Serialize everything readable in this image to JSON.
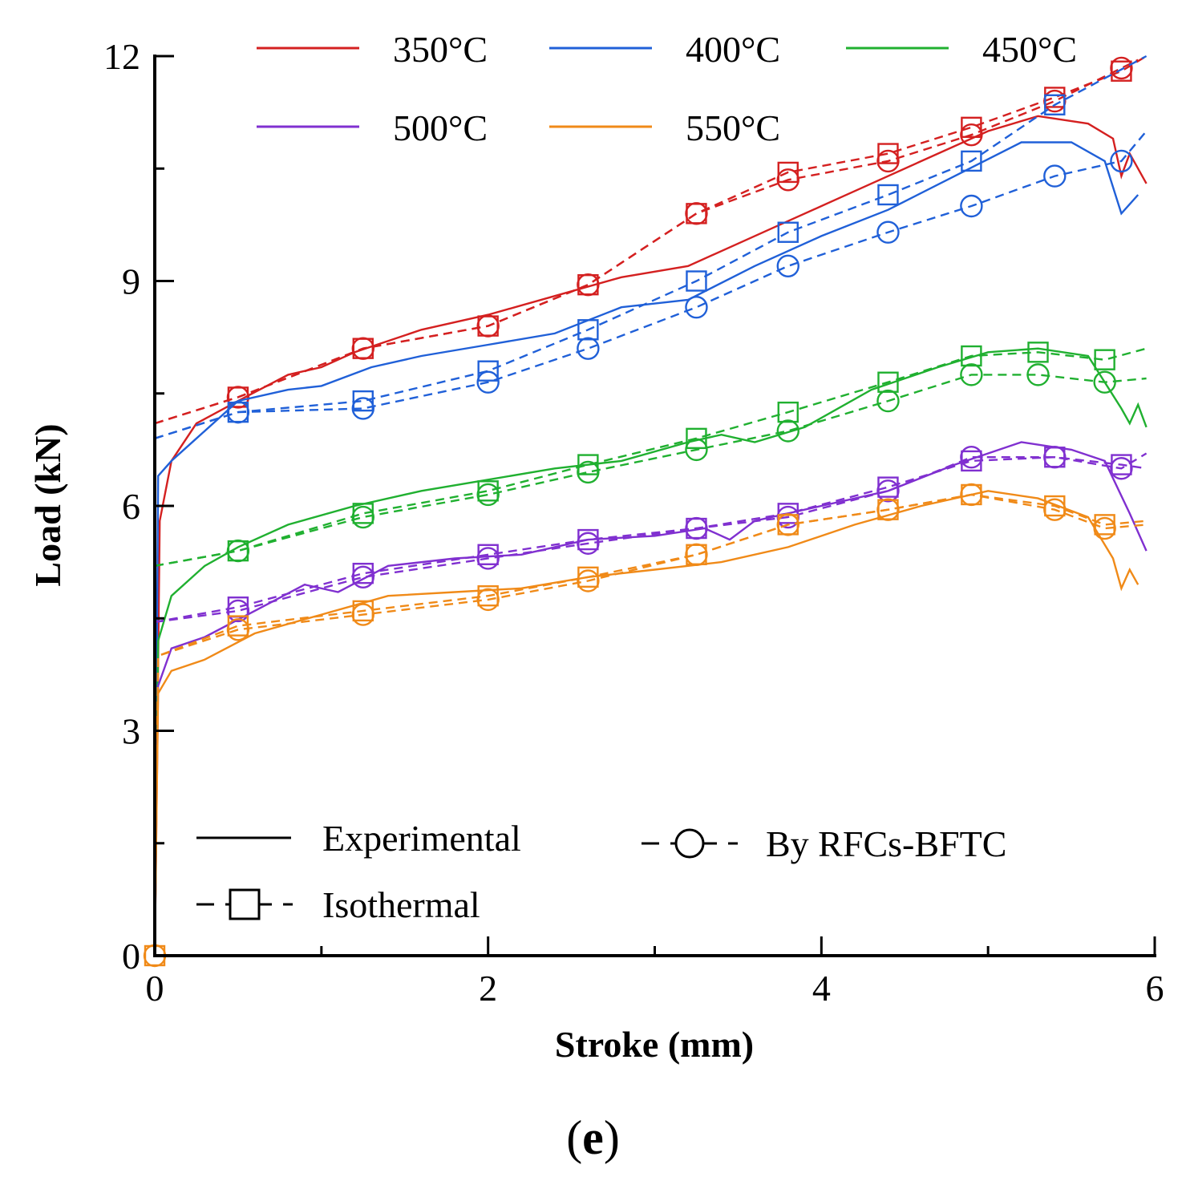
{
  "chart_data": {
    "type": "line",
    "xlabel": "Stroke (mm)",
    "ylabel": "Load (kN)",
    "xlim": [
      0,
      6
    ],
    "ylim": [
      0,
      12
    ],
    "x_ticks": [
      "0",
      "2",
      "4",
      "6"
    ],
    "y_ticks": [
      "0",
      "3",
      "6",
      "9",
      "12"
    ],
    "panel_label_open": "(",
    "panel_label": "e",
    "panel_label_close": ")",
    "temperature_legend": [
      {
        "name": "350°C",
        "color": "#d42020"
      },
      {
        "name": "400°C",
        "color": "#2060d8"
      },
      {
        "name": "450°C",
        "color": "#20b030"
      },
      {
        "name": "500°C",
        "color": "#8030d0"
      },
      {
        "name": "550°C",
        "color": "#f08a18"
      }
    ],
    "style_legend": [
      {
        "label": "Experimental",
        "style": "solid"
      },
      {
        "label": "By RFCs-BFTC",
        "style": "dashed-circle"
      },
      {
        "label": "Isothermal",
        "style": "dashed-square"
      }
    ],
    "series": [
      {
        "name": "350°C",
        "color": "#d42020",
        "experimental": [
          [
            0,
            0
          ],
          [
            0.03,
            5.8
          ],
          [
            0.1,
            6.6
          ],
          [
            0.25,
            7.1
          ],
          [
            0.5,
            7.4
          ],
          [
            0.8,
            7.75
          ],
          [
            1.0,
            7.85
          ],
          [
            1.2,
            8.05
          ],
          [
            1.6,
            8.35
          ],
          [
            2.0,
            8.55
          ],
          [
            2.4,
            8.8
          ],
          [
            2.8,
            9.05
          ],
          [
            3.2,
            9.2
          ],
          [
            3.5,
            9.5
          ],
          [
            3.8,
            9.8
          ],
          [
            4.2,
            10.2
          ],
          [
            4.6,
            10.6
          ],
          [
            5.0,
            11.0
          ],
          [
            5.3,
            11.2
          ],
          [
            5.6,
            11.1
          ],
          [
            5.75,
            10.9
          ],
          [
            5.8,
            10.4
          ],
          [
            5.85,
            10.7
          ],
          [
            5.95,
            10.3
          ]
        ],
        "rfcs": [
          [
            0,
            7.1
          ],
          [
            0.5,
            7.45
          ],
          [
            1.25,
            8.1
          ],
          [
            2.0,
            8.4
          ],
          [
            2.6,
            8.95
          ],
          [
            3.25,
            9.9
          ],
          [
            3.8,
            10.35
          ],
          [
            4.4,
            10.6
          ],
          [
            4.9,
            10.95
          ],
          [
            5.4,
            11.4
          ],
          [
            5.9,
            11.95
          ]
        ],
        "rfcs_markers": [
          0.5,
          1.25,
          2.0,
          2.6,
          3.25,
          3.8,
          4.4,
          4.9,
          5.4,
          5.8
        ],
        "isothermal": [
          [
            0,
            7.1
          ],
          [
            0.5,
            7.45
          ],
          [
            1.25,
            8.1
          ],
          [
            2.0,
            8.4
          ],
          [
            2.6,
            8.95
          ],
          [
            3.25,
            9.9
          ],
          [
            3.8,
            10.45
          ],
          [
            4.4,
            10.7
          ],
          [
            4.9,
            11.05
          ],
          [
            5.4,
            11.45
          ],
          [
            5.8,
            11.8
          ],
          [
            5.95,
            12.0
          ]
        ],
        "iso_markers": [
          0.5,
          1.25,
          2.0,
          2.6,
          3.25,
          3.8,
          4.4,
          4.9,
          5.4,
          5.8
        ]
      },
      {
        "name": "400°C",
        "color": "#2060d8",
        "experimental": [
          [
            0,
            0
          ],
          [
            0.02,
            6.4
          ],
          [
            0.1,
            6.6
          ],
          [
            0.25,
            6.9
          ],
          [
            0.5,
            7.4
          ],
          [
            0.8,
            7.55
          ],
          [
            1.0,
            7.6
          ],
          [
            1.3,
            7.85
          ],
          [
            1.6,
            8.0
          ],
          [
            2.0,
            8.15
          ],
          [
            2.4,
            8.3
          ],
          [
            2.8,
            8.65
          ],
          [
            3.2,
            8.75
          ],
          [
            3.6,
            9.2
          ],
          [
            4.0,
            9.6
          ],
          [
            4.4,
            9.95
          ],
          [
            4.8,
            10.4
          ],
          [
            5.2,
            10.85
          ],
          [
            5.5,
            10.85
          ],
          [
            5.7,
            10.6
          ],
          [
            5.8,
            9.9
          ],
          [
            5.9,
            10.15
          ]
        ],
        "rfcs": [
          [
            0,
            6.9
          ],
          [
            0.5,
            7.25
          ],
          [
            1.25,
            7.3
          ],
          [
            2.0,
            7.65
          ],
          [
            2.6,
            8.1
          ],
          [
            3.25,
            8.65
          ],
          [
            3.8,
            9.2
          ],
          [
            4.4,
            9.65
          ],
          [
            4.9,
            10.0
          ],
          [
            5.4,
            10.4
          ],
          [
            5.8,
            10.6
          ],
          [
            5.95,
            11.0
          ]
        ],
        "rfcs_markers": [
          0.5,
          1.25,
          2.0,
          2.6,
          3.25,
          3.8,
          4.4,
          4.9,
          5.4,
          5.8
        ],
        "isothermal": [
          [
            0,
            6.9
          ],
          [
            0.5,
            7.25
          ],
          [
            1.25,
            7.4
          ],
          [
            2.0,
            7.8
          ],
          [
            2.6,
            8.35
          ],
          [
            3.25,
            9.0
          ],
          [
            3.8,
            9.65
          ],
          [
            4.4,
            10.15
          ],
          [
            4.9,
            10.6
          ],
          [
            5.4,
            11.35
          ],
          [
            5.95,
            12.0
          ]
        ],
        "iso_markers": [
          0.5,
          1.25,
          2.0,
          2.6,
          3.25,
          3.8,
          4.4,
          4.9,
          5.4
        ]
      },
      {
        "name": "450°C",
        "color": "#20b030",
        "experimental": [
          [
            0,
            0
          ],
          [
            0.02,
            4.2
          ],
          [
            0.1,
            4.8
          ],
          [
            0.3,
            5.2
          ],
          [
            0.5,
            5.45
          ],
          [
            0.8,
            5.75
          ],
          [
            1.2,
            6.0
          ],
          [
            1.6,
            6.2
          ],
          [
            2.0,
            6.35
          ],
          [
            2.4,
            6.5
          ],
          [
            2.8,
            6.6
          ],
          [
            3.2,
            6.85
          ],
          [
            3.4,
            6.95
          ],
          [
            3.6,
            6.85
          ],
          [
            3.9,
            7.05
          ],
          [
            4.3,
            7.55
          ],
          [
            4.7,
            7.85
          ],
          [
            5.0,
            8.05
          ],
          [
            5.3,
            8.1
          ],
          [
            5.6,
            8.0
          ],
          [
            5.8,
            7.3
          ],
          [
            5.85,
            7.1
          ],
          [
            5.9,
            7.35
          ],
          [
            5.95,
            7.05
          ]
        ],
        "rfcs": [
          [
            0,
            5.2
          ],
          [
            0.5,
            5.4
          ],
          [
            1.25,
            5.85
          ],
          [
            2.0,
            6.15
          ],
          [
            2.6,
            6.45
          ],
          [
            3.25,
            6.75
          ],
          [
            3.8,
            7.0
          ],
          [
            4.4,
            7.4
          ],
          [
            4.9,
            7.75
          ],
          [
            5.3,
            7.75
          ],
          [
            5.7,
            7.65
          ],
          [
            5.95,
            7.7
          ]
        ],
        "rfcs_markers": [
          0.5,
          1.25,
          2.0,
          2.6,
          3.25,
          3.8,
          4.4,
          4.9,
          5.3,
          5.7
        ],
        "isothermal": [
          [
            0,
            5.2
          ],
          [
            0.5,
            5.4
          ],
          [
            1.25,
            5.9
          ],
          [
            2.0,
            6.2
          ],
          [
            2.6,
            6.55
          ],
          [
            3.25,
            6.9
          ],
          [
            3.8,
            7.25
          ],
          [
            4.4,
            7.65
          ],
          [
            4.9,
            8.0
          ],
          [
            5.3,
            8.05
          ],
          [
            5.7,
            7.95
          ],
          [
            5.95,
            8.1
          ]
        ],
        "iso_markers": [
          0.5,
          1.25,
          2.0,
          2.6,
          3.25,
          3.8,
          4.4,
          4.9,
          5.3,
          5.7
        ]
      },
      {
        "name": "500°C",
        "color": "#8030d0",
        "experimental": [
          [
            0,
            0
          ],
          [
            0.02,
            3.6
          ],
          [
            0.1,
            4.1
          ],
          [
            0.3,
            4.25
          ],
          [
            0.6,
            4.6
          ],
          [
            0.9,
            4.95
          ],
          [
            1.1,
            4.85
          ],
          [
            1.4,
            5.2
          ],
          [
            1.8,
            5.3
          ],
          [
            2.2,
            5.35
          ],
          [
            2.6,
            5.55
          ],
          [
            3.0,
            5.6
          ],
          [
            3.3,
            5.7
          ],
          [
            3.45,
            5.55
          ],
          [
            3.6,
            5.8
          ],
          [
            4.0,
            6.0
          ],
          [
            4.4,
            6.2
          ],
          [
            4.8,
            6.55
          ],
          [
            5.2,
            6.85
          ],
          [
            5.5,
            6.75
          ],
          [
            5.7,
            6.6
          ],
          [
            5.85,
            5.9
          ],
          [
            5.95,
            5.4
          ]
        ],
        "rfcs": [
          [
            0,
            4.45
          ],
          [
            0.5,
            4.6
          ],
          [
            1.25,
            5.05
          ],
          [
            2.0,
            5.3
          ],
          [
            2.6,
            5.5
          ],
          [
            3.25,
            5.7
          ],
          [
            3.8,
            5.85
          ],
          [
            4.4,
            6.2
          ],
          [
            4.9,
            6.65
          ],
          [
            5.4,
            6.65
          ],
          [
            5.8,
            6.5
          ],
          [
            5.95,
            6.7
          ]
        ],
        "rfcs_markers": [
          0.5,
          1.25,
          2.0,
          2.6,
          3.25,
          3.8,
          4.4,
          4.9,
          5.4,
          5.8
        ],
        "isothermal": [
          [
            0,
            4.45
          ],
          [
            0.5,
            4.65
          ],
          [
            1.25,
            5.1
          ],
          [
            2.0,
            5.35
          ],
          [
            2.6,
            5.55
          ],
          [
            3.25,
            5.7
          ],
          [
            3.8,
            5.9
          ],
          [
            4.4,
            6.25
          ],
          [
            4.9,
            6.6
          ],
          [
            5.4,
            6.65
          ],
          [
            5.8,
            6.55
          ],
          [
            5.95,
            6.5
          ]
        ],
        "iso_markers": [
          0.5,
          1.25,
          2.0,
          2.6,
          3.25,
          3.8,
          4.4,
          4.9,
          5.4,
          5.8
        ]
      },
      {
        "name": "550°C",
        "color": "#f08a18",
        "experimental": [
          [
            0,
            0
          ],
          [
            0.02,
            3.5
          ],
          [
            0.1,
            3.8
          ],
          [
            0.3,
            3.95
          ],
          [
            0.6,
            4.3
          ],
          [
            1.0,
            4.55
          ],
          [
            1.4,
            4.8
          ],
          [
            1.8,
            4.85
          ],
          [
            2.2,
            4.9
          ],
          [
            2.6,
            5.05
          ],
          [
            3.0,
            5.15
          ],
          [
            3.4,
            5.25
          ],
          [
            3.8,
            5.45
          ],
          [
            4.2,
            5.75
          ],
          [
            4.6,
            6.0
          ],
          [
            5.0,
            6.2
          ],
          [
            5.3,
            6.1
          ],
          [
            5.6,
            5.85
          ],
          [
            5.75,
            5.3
          ],
          [
            5.8,
            4.9
          ],
          [
            5.85,
            5.15
          ],
          [
            5.9,
            4.95
          ]
        ],
        "rfcs": [
          [
            0,
            0
          ],
          [
            0.02,
            4.0
          ],
          [
            0.5,
            4.35
          ],
          [
            1.25,
            4.55
          ],
          [
            2.0,
            4.75
          ],
          [
            2.6,
            5.0
          ],
          [
            3.25,
            5.35
          ],
          [
            3.8,
            5.75
          ],
          [
            4.4,
            5.95
          ],
          [
            4.9,
            6.15
          ],
          [
            5.4,
            5.95
          ],
          [
            5.7,
            5.7
          ],
          [
            5.95,
            5.75
          ]
        ],
        "rfcs_markers": [
          0,
          0.5,
          1.25,
          2.0,
          2.6,
          3.25,
          3.8,
          4.4,
          4.9,
          5.4,
          5.7
        ],
        "isothermal": [
          [
            0,
            0
          ],
          [
            0.02,
            4.0
          ],
          [
            0.5,
            4.4
          ],
          [
            1.25,
            4.6
          ],
          [
            2.0,
            4.8
          ],
          [
            2.6,
            5.05
          ],
          [
            3.25,
            5.35
          ],
          [
            3.8,
            5.75
          ],
          [
            4.4,
            5.95
          ],
          [
            4.9,
            6.15
          ],
          [
            5.4,
            6.0
          ],
          [
            5.7,
            5.75
          ],
          [
            5.95,
            5.8
          ]
        ],
        "iso_markers": [
          0,
          0.5,
          1.25,
          2.0,
          2.6,
          3.25,
          3.8,
          4.4,
          4.9,
          5.4,
          5.7
        ]
      }
    ]
  }
}
